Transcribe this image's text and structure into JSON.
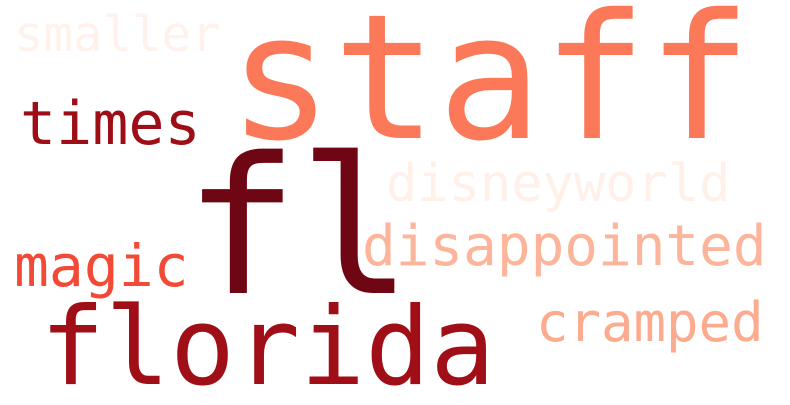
{
  "words": [
    {
      "id": "staff",
      "text": "staff",
      "color": "#fb7858"
    },
    {
      "id": "fl",
      "text": "fl",
      "color": "#6e0614"
    },
    {
      "id": "florida",
      "text": "florida",
      "color": "#a00f17"
    },
    {
      "id": "times",
      "text": "times",
      "color": "#9d0e17"
    },
    {
      "id": "magic",
      "text": "magic",
      "color": "#f24a36"
    },
    {
      "id": "disappointed",
      "text": "disappointed",
      "color": "#fcb59a"
    },
    {
      "id": "cramped",
      "text": "cramped",
      "color": "#fcab8f"
    },
    {
      "id": "disneyworld",
      "text": "disneyworld",
      "color": "#fff0ea"
    },
    {
      "id": "smaller",
      "text": "smaller",
      "color": "#fff1eb"
    }
  ]
}
